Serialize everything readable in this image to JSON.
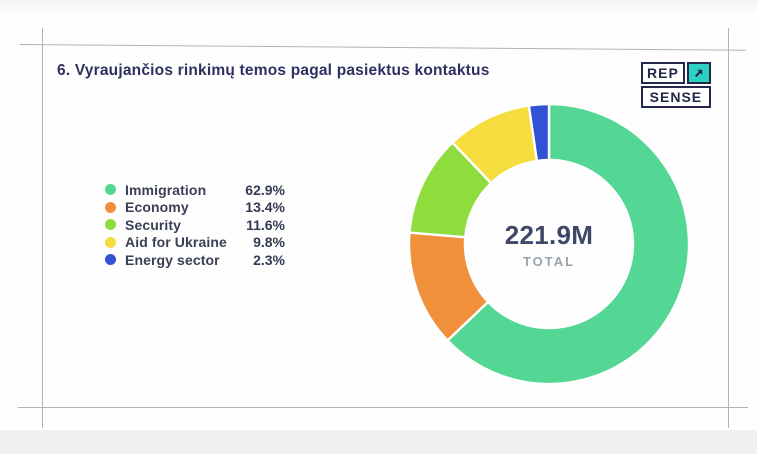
{
  "page": {
    "title": "6. Vyraujančios rinkimų temos pagal pasiektus kontaktus"
  },
  "logo": {
    "line1": "REP",
    "line2": "SENSE",
    "arrow_icon": "arrow-up-right-icon",
    "accent_color": "#2bd2c4",
    "navy_color": "#23284a"
  },
  "legend": {
    "items": [
      {
        "label": "Immigration",
        "value": "62.9%"
      },
      {
        "label": "Economy",
        "value": "13.4%"
      },
      {
        "label": "Security",
        "value": "11.6%"
      },
      {
        "label": "Aid for Ukraine",
        "value": "9.8%"
      },
      {
        "label": "Energy sector",
        "value": "2.3%"
      }
    ]
  },
  "donut": {
    "center_value": "221.9M",
    "center_label": "TOTAL"
  },
  "chart_data": {
    "type": "pie",
    "donut": true,
    "title": "6. Vyraujančios rinkimų temos pagal pasiektus kontaktus",
    "categories": [
      "Immigration",
      "Economy",
      "Security",
      "Aid for Ukraine",
      "Energy sector"
    ],
    "values": [
      62.9,
      13.4,
      11.6,
      9.8,
      2.3
    ],
    "unit": "%",
    "colors": [
      "#54d695",
      "#f0903d",
      "#8edc3d",
      "#f5dd3d",
      "#3152d4"
    ],
    "start_angle_deg": 0,
    "direction": "clockwise",
    "inner_radius_ratio": 0.6,
    "center_text": "221.9M TOTAL",
    "legend_position": "left",
    "slice_gap_color": "#ffffff"
  }
}
